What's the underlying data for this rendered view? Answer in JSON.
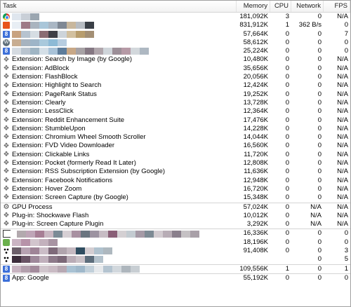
{
  "columns": {
    "task": "Task",
    "memory": "Memory",
    "cpu": "CPU",
    "network": "Network",
    "fps": "FPS"
  },
  "rows": [
    {
      "icon": "chrome-icon",
      "label": "",
      "memory": "181,092K",
      "cpu": "3",
      "network": "0",
      "fps": "N/A",
      "pix": [
        "#dfe6ee",
        "#c9cfd7",
        "#9ba6b0"
      ]
    },
    {
      "icon": "feed-icon",
      "label": "",
      "memory": "831,912K",
      "cpu": "1",
      "network": "362 B/s",
      "fps": "0",
      "pix": [
        "#e8eef4",
        "#9e7a86",
        "#aab4bf",
        "#a9c6d9",
        "#aab7c4",
        "#7f8894",
        "#c8b79d",
        "#b7bcc2",
        "#3a3f46"
      ]
    },
    {
      "icon": "google-icon",
      "label": "",
      "memory": "57,664K",
      "cpu": "0",
      "network": "0",
      "fps": "7",
      "pix": [
        "#c8a27f",
        "#b7c3cf",
        "#d6dde3",
        "#8a6c73",
        "#3f3f46",
        "#cdd4da",
        "#d2c09f",
        "#b89d6d",
        "#a38f74"
      ]
    },
    {
      "icon": "wordpress-icon",
      "label": "",
      "memory": "58,612K",
      "cpu": "0",
      "network": "0",
      "fps": "0",
      "pix": [
        "#c8ad91",
        "#a7b3bf",
        "#9eb5c8",
        "#a9c9dc",
        "#8dbad6",
        "#b7cde0"
      ]
    },
    {
      "icon": "google-icon",
      "label": "",
      "memory": "25,224K",
      "cpu": "0",
      "network": "0",
      "fps": "0",
      "pix": [
        "#d5dbe1",
        "#b9c4cf",
        "#9fb5c4",
        "#d4dfe7",
        "#a8c2d8",
        "#5d7c9b",
        "#c8a887",
        "#a7a2a5",
        "#857883",
        "#b0a6ac",
        "#cfd5da",
        "#9c8f98",
        "#b69aa6",
        "#d3d8dc",
        "#aeb8c2"
      ]
    },
    {
      "icon": "puzzle-icon",
      "label": "Extension: Search by Image (by Google)",
      "memory": "10,480K",
      "cpu": "0",
      "network": "0",
      "fps": "N/A"
    },
    {
      "icon": "puzzle-icon",
      "label": "Extension: AdBlock",
      "memory": "35,656K",
      "cpu": "0",
      "network": "0",
      "fps": "N/A"
    },
    {
      "icon": "puzzle-icon",
      "label": "Extension: FlashBlock",
      "memory": "20,056K",
      "cpu": "0",
      "network": "0",
      "fps": "N/A"
    },
    {
      "icon": "puzzle-icon",
      "label": "Extension: Highlight to Search",
      "memory": "12,424K",
      "cpu": "0",
      "network": "0",
      "fps": "N/A"
    },
    {
      "icon": "puzzle-icon",
      "label": "Extension: PageRank Status",
      "memory": "19,252K",
      "cpu": "0",
      "network": "0",
      "fps": "N/A"
    },
    {
      "icon": "puzzle-icon",
      "label": "Extension: Clearly",
      "memory": "13,728K",
      "cpu": "0",
      "network": "0",
      "fps": "N/A"
    },
    {
      "icon": "puzzle-icon",
      "label": "Extension: LessClick",
      "memory": "12,364K",
      "cpu": "0",
      "network": "0",
      "fps": "N/A"
    },
    {
      "icon": "puzzle-icon",
      "label": "Extension: Reddit Enhancement Suite",
      "memory": "17,476K",
      "cpu": "0",
      "network": "0",
      "fps": "N/A"
    },
    {
      "icon": "puzzle-icon",
      "label": "Extension: StumbleUpon",
      "memory": "14,228K",
      "cpu": "0",
      "network": "0",
      "fps": "N/A"
    },
    {
      "icon": "puzzle-icon",
      "label": "Extension: Chromium Wheel Smooth Scroller",
      "memory": "14,044K",
      "cpu": "0",
      "network": "0",
      "fps": "N/A"
    },
    {
      "icon": "puzzle-icon",
      "label": "Extension: FVD Video Downloader",
      "memory": "16,560K",
      "cpu": "0",
      "network": "0",
      "fps": "N/A"
    },
    {
      "icon": "puzzle-icon",
      "label": "Extension: Clickable Links",
      "memory": "11,720K",
      "cpu": "0",
      "network": "0",
      "fps": "N/A"
    },
    {
      "icon": "puzzle-icon",
      "label": "Extension: Pocket (formerly Read It Later)",
      "memory": "12,808K",
      "cpu": "0",
      "network": "0",
      "fps": "N/A"
    },
    {
      "icon": "puzzle-icon",
      "label": "Extension: RSS Subscription Extension (by Google)",
      "memory": "11,636K",
      "cpu": "0",
      "network": "0",
      "fps": "N/A"
    },
    {
      "icon": "puzzle-icon",
      "label": "Extension: Facebook Notifications",
      "memory": "12,948K",
      "cpu": "0",
      "network": "0",
      "fps": "N/A"
    },
    {
      "icon": "puzzle-icon",
      "label": "Extension: Hover Zoom",
      "memory": "16,720K",
      "cpu": "0",
      "network": "0",
      "fps": "N/A"
    },
    {
      "icon": "puzzle-icon",
      "label": "Extension: Screen Capture (by Google)",
      "memory": "15,348K",
      "cpu": "0",
      "network": "0",
      "fps": "N/A"
    },
    {
      "icon": "gear-icon",
      "label": "GPU Process",
      "memory": "57,024K",
      "cpu": "0",
      "network": "N/A",
      "fps": "N/A",
      "group": true
    },
    {
      "icon": "puzzle-icon",
      "label": "Plug-in: Shockwave Flash",
      "memory": "10,012K",
      "cpu": "0",
      "network": "N/A",
      "fps": "N/A"
    },
    {
      "icon": "puzzle-icon",
      "label": "Plug-in: Screen Capture Plugin",
      "memory": "3,292K",
      "cpu": "0",
      "network": "N/A",
      "fps": "N/A"
    },
    {
      "icon": "bracket-icon",
      "label": "",
      "memory": "16,336K",
      "cpu": "0",
      "network": "0",
      "fps": "0",
      "group": true,
      "pix": [
        "#b3a9ae",
        "#bfa5b7",
        "#a77e95",
        "#c9b7c2",
        "#7c8b96",
        "#d6cfd4",
        "#a890a1",
        "#6a7580",
        "#9d93a1",
        "#c7bcc4",
        "#8a5f77",
        "#d4d0d3",
        "#c3cbd1",
        "#a59aa6",
        "#7d8a94",
        "#d2cbd0",
        "#b8adb6",
        "#8a7f8c",
        "#c5c1c4",
        "#a9a0a8"
      ]
    },
    {
      "icon": "plugin-icon",
      "label": "",
      "memory": "18,196K",
      "cpu": "0",
      "network": "0",
      "fps": "0",
      "pix": [
        "#cab4c3",
        "#b793a9",
        "#d2c5cd",
        "#c3b1bd",
        "#a894a3"
      ]
    },
    {
      "icon": "dots-icon",
      "label": "",
      "memory": "91,408K",
      "cpu": "0",
      "network": "0",
      "fps": "3",
      "pix": [
        "#6c5f6a",
        "#b6a2b1",
        "#9f8497",
        "#cbbdc7",
        "#7e6a7a",
        "#b0a4ad",
        "#c5b9c1",
        "#2f4d60",
        "#d4ced2",
        "#b0c2ce",
        "#aeb8bf"
      ]
    },
    {
      "icon": "dots-icon",
      "label": "",
      "memory": "",
      "cpu": "",
      "network": "0",
      "fps": "5",
      "pix": [
        "#3c2d3b",
        "#6a5566",
        "#9e889a",
        "#c0b0bc",
        "#8d7a8a",
        "#7b6878",
        "#b9acb6",
        "#c9c1c7",
        "#5c6d7b",
        "#b3c1cb"
      ]
    },
    {
      "icon": "google-icon",
      "label": "",
      "memory": "109,556K",
      "cpu": "1",
      "network": "0",
      "fps": "1",
      "group": true,
      "pix": [
        "#c8b4c1",
        "#b3a0ad",
        "#a38b9c",
        "#d0c5cc",
        "#c9bbc4",
        "#b7a9b3",
        "#a9c2d3",
        "#9fb8ca",
        "#c2d0da",
        "#e6e9ec",
        "#b4c4d0",
        "#d2d8dd",
        "#aeb6bd",
        "#c8ced3"
      ]
    },
    {
      "icon": "google-icon",
      "label": "App: Google",
      "memory": "55,192K",
      "cpu": "0",
      "network": "0",
      "fps": "0",
      "group": true
    }
  ]
}
